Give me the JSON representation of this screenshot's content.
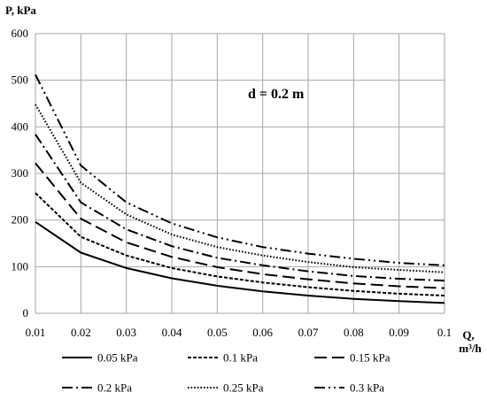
{
  "chart_data": {
    "type": "line",
    "title": "",
    "ylabel": "P, kPa",
    "xlabel_line1": "Q,",
    "xlabel_line2": "m³/h",
    "annotation": "d = 0.2 m",
    "xlim": [
      0.01,
      0.1
    ],
    "ylim": [
      0,
      600
    ],
    "grid": true,
    "legend_position": "bottom",
    "x": [
      0.01,
      0.02,
      0.03,
      0.04,
      0.05,
      0.06,
      0.07,
      0.08,
      0.09,
      0.1
    ],
    "x_tick_labels": [
      "0.01",
      "0.02",
      "0.03",
      "0.04",
      "0.05",
      "0.06",
      "0.07",
      "0.08",
      "0.09",
      "0.1"
    ],
    "y_ticks": [
      0,
      100,
      200,
      300,
      400,
      500,
      600
    ],
    "y_tick_labels": [
      "0",
      "100",
      "200",
      "300",
      "400",
      "500",
      "600"
    ],
    "series": [
      {
        "name": "0.05 kPa",
        "dash": "solid",
        "values": [
          196,
          130,
          97,
          75,
          59,
          47,
          38,
          31,
          26,
          22
        ]
      },
      {
        "name": "0.1 kPa",
        "dash": "short-dash",
        "values": [
          258,
          164,
          124,
          97,
          79,
          66,
          56,
          48,
          42,
          38
        ]
      },
      {
        "name": "0.15 kPa",
        "dash": "long-dash",
        "values": [
          322,
          203,
          152,
          121,
          99,
          84,
          73,
          64,
          58,
          54
        ]
      },
      {
        "name": "0.2 kPa",
        "dash": "dash-dot",
        "values": [
          384,
          238,
          180,
          144,
          119,
          103,
          90,
          80,
          74,
          70
        ]
      },
      {
        "name": "0.25 kPa",
        "dash": "dotted",
        "values": [
          448,
          280,
          212,
          169,
          142,
          124,
          110,
          99,
          93,
          88
        ]
      },
      {
        "name": "0.3 kPa",
        "dash": "dash-dot-dot",
        "values": [
          512,
          317,
          238,
          193,
          163,
          142,
          128,
          117,
          108,
          103
        ]
      }
    ],
    "colors": {
      "line": "#000000",
      "grid": "#a6a6a6"
    }
  }
}
